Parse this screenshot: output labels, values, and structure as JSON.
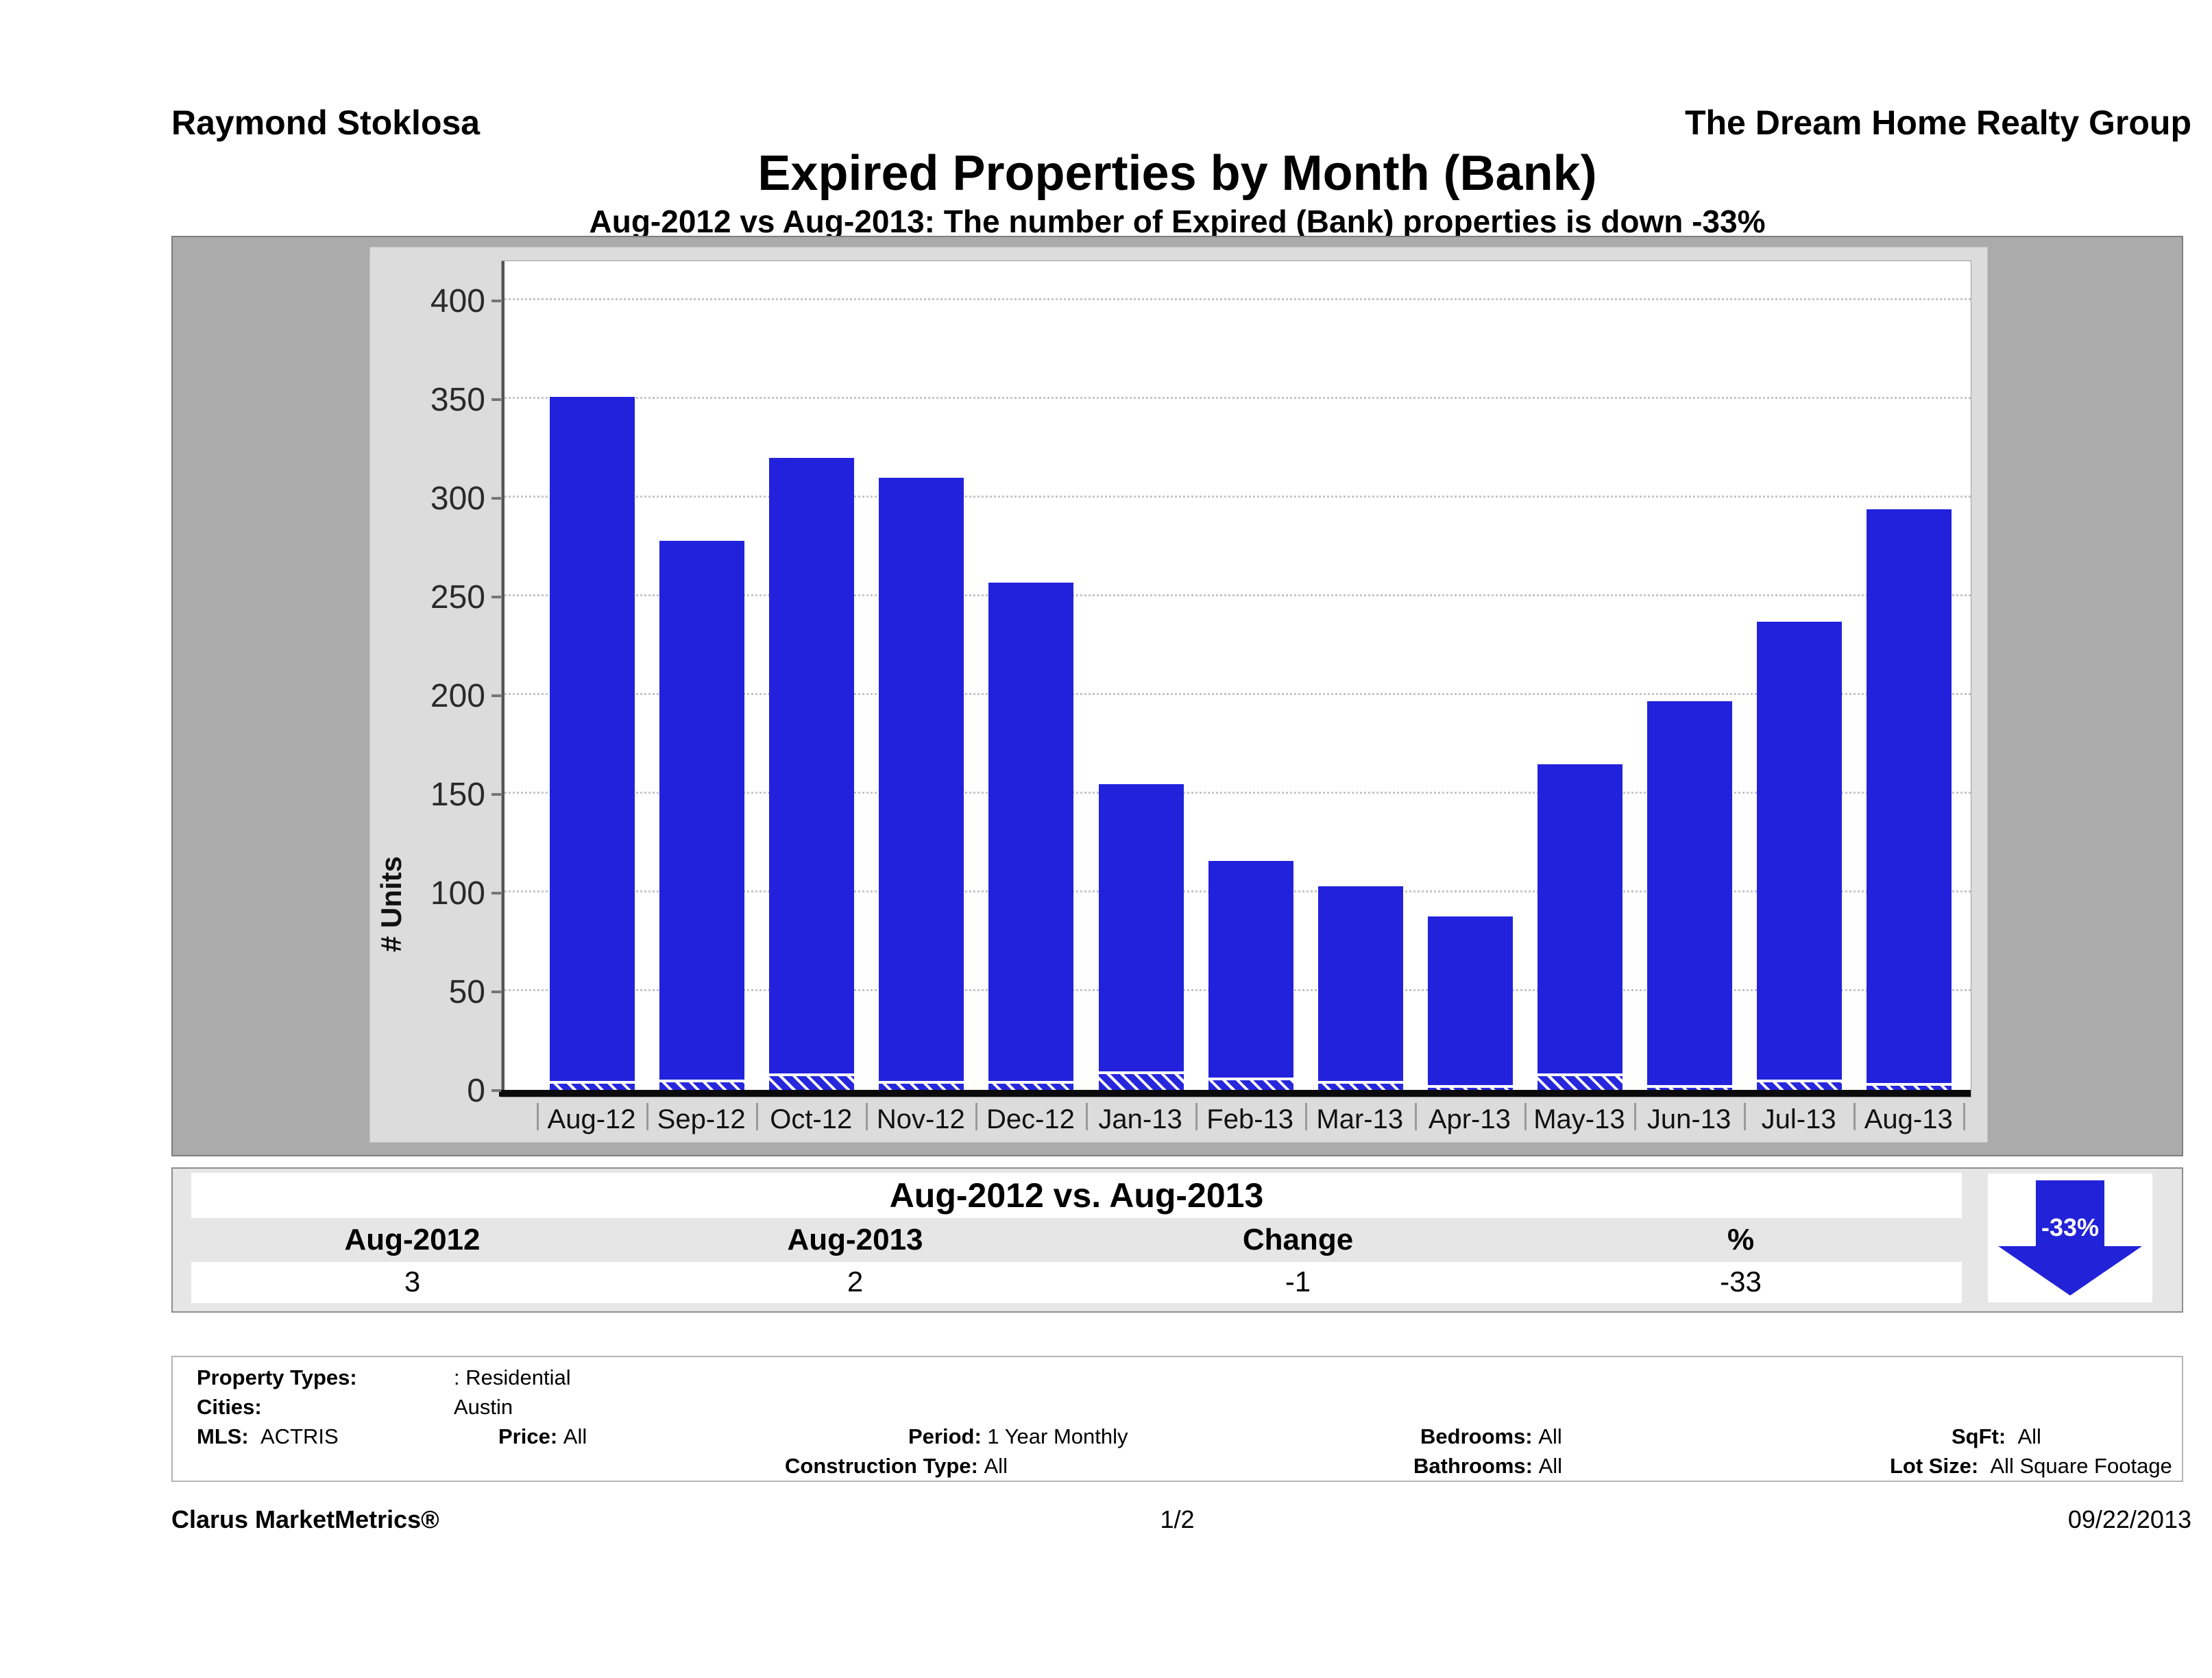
{
  "header": {
    "agent": "Raymond Stoklosa",
    "company": "The Dream Home Realty Group"
  },
  "title": "Expired Properties by Month (Bank)",
  "subtitle": "Aug-2012 vs Aug-2013: The number of Expired (Bank)  properties is down -33%",
  "chart_data": {
    "type": "bar",
    "title": "Expired Properties by Month (Bank)",
    "ylabel": "# Units",
    "xlabel": "",
    "ylim": [
      0,
      400
    ],
    "yticks": [
      0,
      50,
      100,
      150,
      200,
      250,
      300,
      350,
      400
    ],
    "grid": "horizontal-dotted",
    "legend": "none",
    "categories": [
      "Aug-12",
      "Sep-12",
      "Oct-12",
      "Nov-12",
      "Dec-12",
      "Jan-13",
      "Feb-13",
      "Mar-13",
      "Apr-13",
      "May-13",
      "Jun-13",
      "Jul-13",
      "Aug-13"
    ],
    "series": [
      {
        "name": "Expired properties",
        "style": "solid",
        "color": "#2222dd",
        "values": [
          351,
          278,
          320,
          310,
          257,
          155,
          116,
          103,
          88,
          165,
          197,
          237,
          294
        ]
      },
      {
        "name": "Expired (Bank) properties",
        "style": "hatched",
        "color": "#2727dd",
        "stripe_color": "#ffffff",
        "values": [
          3,
          4,
          7,
          3,
          3,
          8,
          5,
          3,
          1,
          7,
          1,
          4,
          2
        ]
      }
    ]
  },
  "summary_table": {
    "title": "Aug-2012 vs. Aug-2013",
    "columns": [
      "Aug-2012",
      "Aug-2013",
      "Change",
      "%"
    ],
    "values": [
      "3",
      "2",
      "-1",
      "-33"
    ],
    "arrow_label": "-33%",
    "arrow_color": "#2222d8",
    "arrow_direction": "down"
  },
  "criteria": {
    "property_types_label": "Property Types:",
    "property_types_value": ": Residential",
    "cities_label": "Cities:",
    "cities_value": "Austin",
    "mls_label": "MLS:",
    "mls_value": "ACTRIS",
    "price_label": "Price:",
    "price_value": "All",
    "period_label": "Period:",
    "period_value": "1 Year Monthly",
    "bedrooms_label": "Bedrooms:",
    "bedrooms_value": "All",
    "sqft_label": "SqFt:",
    "sqft_value": "All",
    "construction_label": "Construction Type:",
    "construction_value": "All",
    "bathrooms_label": "Bathrooms:",
    "bathrooms_value": "All",
    "lotsize_label": "Lot Size:",
    "lotsize_value": "All Square Footage"
  },
  "footer": {
    "brand": "Clarus MarketMetrics®",
    "page": "1/2",
    "date": "09/22/2013"
  }
}
